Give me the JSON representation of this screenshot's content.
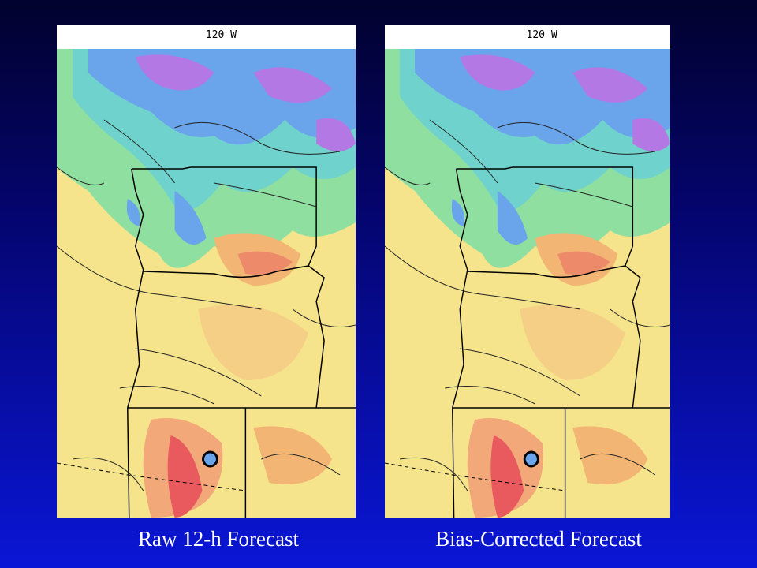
{
  "panels": [
    {
      "label": "120 W",
      "caption": "Raw 12-h Forecast"
    },
    {
      "label": "120 W",
      "caption": "Bias-Corrected Forecast"
    }
  ]
}
